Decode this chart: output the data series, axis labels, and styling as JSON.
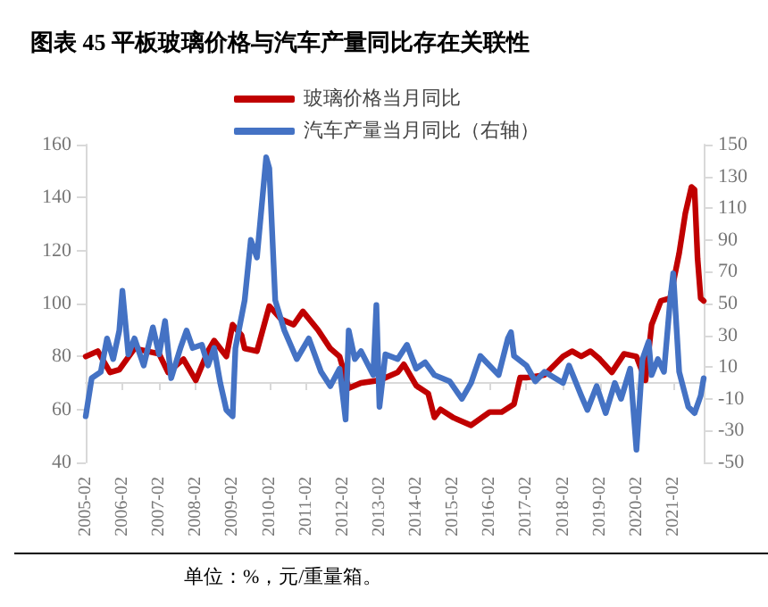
{
  "chart_data": {
    "type": "line",
    "title": "图表 45 平板玻璃价格与汽车产量同比存在关联性",
    "annotations": [
      "单位：%，元/重量箱。"
    ],
    "series": [
      {
        "name": "玻璃价格当月同比",
        "color": "#c00000",
        "x": [
          "2005-02",
          "2005-06",
          "2005-10",
          "2006-01",
          "2006-06",
          "2007-02",
          "2007-05",
          "2007-10",
          "2008-02",
          "2008-06",
          "2008-08",
          "2008-12",
          "2009-02",
          "2009-05",
          "2009-06",
          "2009-10",
          "2010-02",
          "2010-06",
          "2010-10",
          "2011-01",
          "2011-06",
          "2011-10",
          "2012-01",
          "2012-04",
          "2012-08",
          "2013-02",
          "2013-08",
          "2013-10",
          "2014-02",
          "2014-06",
          "2014-08",
          "2014-10",
          "2015-02",
          "2015-08",
          "2016-02",
          "2016-06",
          "2016-10",
          "2016-12",
          "2017-02",
          "2017-08",
          "2018-02",
          "2018-05",
          "2018-08",
          "2018-11",
          "2019-02",
          "2019-06",
          "2019-10",
          "2020-02",
          "2020-05",
          "2020-07",
          "2020-10",
          "2021-01",
          "2021-04",
          "2021-06",
          "2021-08",
          "2021-09",
          "2021-10",
          "2021-11",
          "2021-12"
        ],
        "values": [
          80,
          82,
          74,
          75,
          83,
          81,
          74,
          79,
          71,
          82,
          86,
          80,
          92,
          88,
          83,
          82,
          99,
          94,
          92,
          97,
          90,
          83,
          80,
          68,
          70,
          71,
          74,
          77,
          69,
          66,
          57,
          60,
          57,
          54,
          59,
          59,
          62,
          72,
          72,
          73,
          80,
          82,
          80,
          82,
          79,
          74,
          81,
          80,
          71,
          92,
          101,
          102,
          119,
          134,
          144,
          143,
          117,
          102,
          101
        ]
      },
      {
        "name": "汽车产量当月同比（右轴）",
        "color": "#4472c4",
        "axis": "y2",
        "x": [
          "2005-02",
          "2005-04",
          "2005-07",
          "2005-09",
          "2005-11",
          "2006-01",
          "2006-02",
          "2006-04",
          "2006-06",
          "2006-09",
          "2006-12",
          "2007-02",
          "2007-04",
          "2007-06",
          "2007-09",
          "2007-11",
          "2008-01",
          "2008-04",
          "2008-06",
          "2008-08",
          "2008-10",
          "2008-12",
          "2009-02",
          "2009-03",
          "2009-06",
          "2009-08",
          "2009-10",
          "2010-01",
          "2010-02",
          "2010-04",
          "2010-07",
          "2010-11",
          "2011-03",
          "2011-07",
          "2011-10",
          "2012-01",
          "2012-03",
          "2012-04",
          "2012-06",
          "2012-08",
          "2012-12",
          "2013-01",
          "2013-02",
          "2013-04",
          "2013-08",
          "2013-11",
          "2014-02",
          "2014-05",
          "2014-08",
          "2015-01",
          "2015-05",
          "2015-08",
          "2015-11",
          "2016-05",
          "2016-08",
          "2016-09",
          "2016-10",
          "2017-02",
          "2017-05",
          "2017-08",
          "2018-02",
          "2018-04",
          "2018-08",
          "2018-10",
          "2019-01",
          "2019-04",
          "2019-07",
          "2019-09",
          "2019-12",
          "2020-02",
          "2020-04",
          "2020-06",
          "2020-07",
          "2020-09",
          "2020-11",
          "2021-01",
          "2021-02",
          "2021-04",
          "2021-07",
          "2021-09",
          "2021-11",
          "2021-12"
        ],
        "values": [
          -21,
          3,
          7,
          28,
          15,
          33,
          58,
          18,
          28,
          11,
          35,
          18,
          39,
          3,
          22,
          33,
          22,
          24,
          11,
          22,
          0,
          -17,
          -21,
          22,
          52,
          90,
          79,
          142,
          135,
          52,
          33,
          15,
          28,
          7,
          -2,
          9,
          -23,
          33,
          15,
          20,
          5,
          49,
          -15,
          18,
          15,
          24,
          9,
          13,
          5,
          1,
          -10,
          0,
          17,
          5,
          28,
          32,
          17,
          11,
          1,
          7,
          0,
          11,
          -8,
          -17,
          -2,
          -19,
          0,
          -10,
          9,
          -42,
          15,
          26,
          5,
          15,
          7,
          52,
          69,
          7,
          -15,
          -19,
          -8,
          3
        ]
      }
    ],
    "xlim": [
      "2005-02",
      "2021-12"
    ],
    "xticks": [
      "2005-02",
      "2006-02",
      "2007-02",
      "2008-02",
      "2009-02",
      "2010-02",
      "2011-02",
      "2012-02",
      "2013-02",
      "2014-02",
      "2015-02",
      "2016-02",
      "2017-02",
      "2018-02",
      "2019-02",
      "2020-02",
      "2021-02"
    ],
    "ylim": [
      40,
      160
    ],
    "yticks": [
      40,
      60,
      80,
      100,
      120,
      140,
      160
    ],
    "y2lim": [
      -50,
      150
    ],
    "y2ticks": [
      -50,
      -30,
      -10,
      10,
      30,
      50,
      70,
      90,
      110,
      130,
      150
    ],
    "grid": false,
    "legend": "top right",
    "marker": "none",
    "line_style": "solid"
  }
}
